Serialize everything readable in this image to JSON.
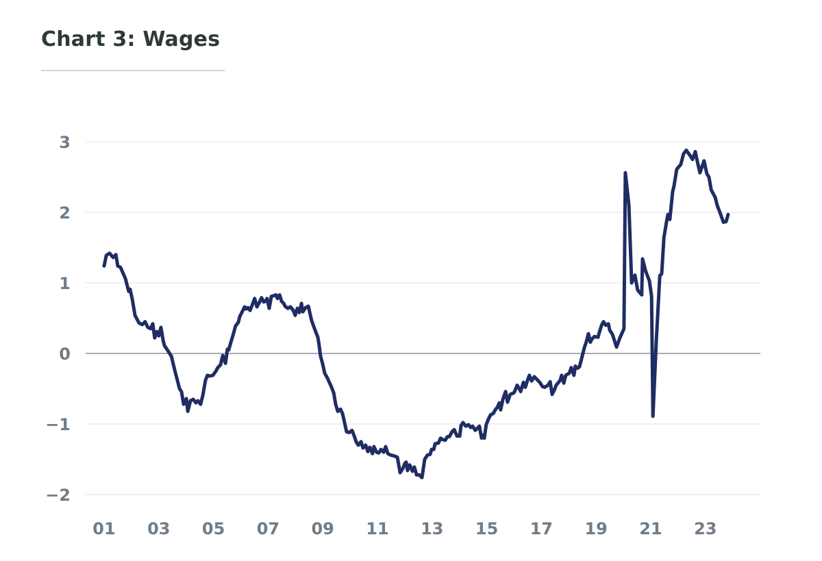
{
  "title": "Chart 3: Wages",
  "chart_data": {
    "type": "line",
    "title": "Chart 3: Wages",
    "xlabel": "",
    "ylabel": "",
    "xlim": [
      2000.5,
      2025.2
    ],
    "ylim": [
      -2,
      3
    ],
    "grid": true,
    "legend": "none",
    "line_color": "#1f2d63",
    "yticks": [
      3,
      2,
      1,
      0,
      -1,
      -2
    ],
    "ytick_labels": [
      "3",
      "2",
      "1",
      "0",
      "−1",
      "−2"
    ],
    "xticks": [
      2001,
      2003,
      2005,
      2007,
      2009,
      2011,
      2013,
      2015,
      2017,
      2019,
      2021,
      2023
    ],
    "xtick_labels": [
      "01",
      "03",
      "05",
      "07",
      "09",
      "11",
      "13",
      "15",
      "17",
      "19",
      "21",
      "23"
    ],
    "series": [
      {
        "x": [
          2001.0,
          2001.08,
          2001.2,
          2001.33,
          2001.43,
          2001.5,
          2001.6,
          2001.78,
          2001.9,
          2001.95,
          2002.03,
          2002.13,
          2002.28,
          2002.4,
          2002.5,
          2002.6,
          2002.7,
          2002.78,
          2002.85,
          2002.93,
          2003.0,
          2003.08,
          2003.16,
          2003.21,
          2003.33,
          2003.46,
          2003.58,
          2003.66,
          2003.76,
          2003.83,
          2003.91,
          2004.01,
          2004.06,
          2004.16,
          2004.26,
          2004.36,
          2004.43,
          2004.53,
          2004.61,
          2004.71,
          2004.78,
          2004.86,
          2004.98,
          2005.09,
          2005.16,
          2005.26,
          2005.34,
          2005.44,
          2005.51,
          2005.56,
          2005.64,
          2005.71,
          2005.81,
          2005.91,
          2005.96,
          2006.09,
          2006.14,
          2006.19,
          2006.26,
          2006.34,
          2006.44,
          2006.51,
          2006.59,
          2006.69,
          2006.76,
          2006.84,
          2006.91,
          2006.96,
          2007.04,
          2007.12,
          2007.22,
          2007.29,
          2007.34,
          2007.42,
          2007.49,
          2007.57,
          2007.62,
          2007.72,
          2007.82,
          2007.92,
          2007.99,
          2008.07,
          2008.14,
          2008.22,
          2008.27,
          2008.37,
          2008.47,
          2008.59,
          2008.72,
          2008.82,
          2008.87,
          2008.92,
          2008.99,
          2009.07,
          2009.17,
          2009.3,
          2009.4,
          2009.47,
          2009.55,
          2009.65,
          2009.72,
          2009.77,
          2009.87,
          2009.97,
          2010.07,
          2010.15,
          2010.22,
          2010.3,
          2010.4,
          2010.47,
          2010.57,
          2010.65,
          2010.72,
          2010.82,
          2010.87,
          2010.97,
          2011.05,
          2011.13,
          2011.23,
          2011.3,
          2011.38,
          2011.48,
          2011.6,
          2011.73,
          2011.83,
          2011.93,
          2012.0,
          2012.05,
          2012.1,
          2012.18,
          2012.28,
          2012.35,
          2012.43,
          2012.53,
          2012.63,
          2012.73,
          2012.83,
          2012.93,
          2012.98,
          2013.06,
          2013.11,
          2013.23,
          2013.31,
          2013.38,
          2013.48,
          2013.56,
          2013.63,
          2013.73,
          2013.81,
          2013.91,
          2014.01,
          2014.06,
          2014.13,
          2014.23,
          2014.33,
          2014.41,
          2014.48,
          2014.58,
          2014.68,
          2014.73,
          2014.81,
          2014.86,
          2014.91,
          2014.98,
          2015.06,
          2015.14,
          2015.24,
          2015.31,
          2015.39,
          2015.46,
          2015.51,
          2015.59,
          2015.69,
          2015.76,
          2015.86,
          2015.99,
          2016.04,
          2016.11,
          2016.19,
          2016.24,
          2016.34,
          2016.41,
          2016.49,
          2016.56,
          2016.64,
          2016.74,
          2016.84,
          2016.94,
          2017.04,
          2017.12,
          2017.24,
          2017.32,
          2017.39,
          2017.47,
          2017.54,
          2017.69,
          2017.74,
          2017.82,
          2017.89,
          2018.02,
          2018.09,
          2018.19,
          2018.24,
          2018.32,
          2018.39,
          2018.49,
          2018.57,
          2018.64,
          2018.72,
          2018.79,
          2018.84,
          2018.94,
          2019.07,
          2019.12,
          2019.2,
          2019.27,
          2019.35,
          2019.45,
          2019.5,
          2019.6,
          2019.75,
          2019.87,
          2020.02,
          2020.07,
          2020.2,
          2020.3,
          2020.42,
          2020.52,
          2020.67,
          2020.7,
          2020.82,
          2020.95,
          2021.03,
          2021.08,
          2021.2,
          2021.33,
          2021.4,
          2021.48,
          2021.58,
          2021.63,
          2021.7,
          2021.8,
          2021.85,
          2021.95,
          2022.1,
          2022.2,
          2022.3,
          2022.43,
          2022.53,
          2022.63,
          2022.7,
          2022.8,
          2022.95,
          2023.05,
          2023.13,
          2023.21,
          2023.36,
          2023.43,
          2023.56,
          2023.66,
          2023.76,
          2023.83
        ],
        "y": [
          1.24,
          1.39,
          1.42,
          1.36,
          1.4,
          1.24,
          1.22,
          1.06,
          0.88,
          0.91,
          0.77,
          0.54,
          0.43,
          0.41,
          0.45,
          0.37,
          0.35,
          0.42,
          0.22,
          0.31,
          0.25,
          0.37,
          0.18,
          0.11,
          0.04,
          -0.04,
          -0.23,
          -0.35,
          -0.5,
          -0.54,
          -0.72,
          -0.64,
          -0.82,
          -0.67,
          -0.65,
          -0.7,
          -0.67,
          -0.72,
          -0.6,
          -0.38,
          -0.31,
          -0.32,
          -0.31,
          -0.25,
          -0.2,
          -0.16,
          -0.03,
          -0.14,
          0.06,
          0.05,
          0.16,
          0.25,
          0.39,
          0.44,
          0.52,
          0.62,
          0.66,
          0.63,
          0.65,
          0.61,
          0.71,
          0.78,
          0.66,
          0.73,
          0.79,
          0.73,
          0.74,
          0.78,
          0.64,
          0.81,
          0.82,
          0.83,
          0.78,
          0.83,
          0.74,
          0.71,
          0.67,
          0.64,
          0.66,
          0.61,
          0.54,
          0.64,
          0.58,
          0.71,
          0.59,
          0.65,
          0.67,
          0.47,
          0.33,
          0.23,
          0.11,
          -0.04,
          -0.14,
          -0.28,
          -0.35,
          -0.46,
          -0.56,
          -0.72,
          -0.82,
          -0.79,
          -0.85,
          -0.93,
          -1.11,
          -1.12,
          -1.09,
          -1.17,
          -1.25,
          -1.3,
          -1.25,
          -1.34,
          -1.3,
          -1.39,
          -1.33,
          -1.42,
          -1.32,
          -1.4,
          -1.41,
          -1.36,
          -1.4,
          -1.32,
          -1.42,
          -1.44,
          -1.45,
          -1.47,
          -1.69,
          -1.63,
          -1.56,
          -1.54,
          -1.66,
          -1.58,
          -1.67,
          -1.61,
          -1.72,
          -1.72,
          -1.76,
          -1.5,
          -1.44,
          -1.43,
          -1.36,
          -1.36,
          -1.28,
          -1.27,
          -1.2,
          -1.22,
          -1.23,
          -1.18,
          -1.18,
          -1.11,
          -1.08,
          -1.17,
          -1.17,
          -1.02,
          -0.98,
          -1.03,
          -1.01,
          -1.05,
          -1.03,
          -1.09,
          -1.05,
          -1.03,
          -1.2,
          -1.16,
          -1.2,
          -1.01,
          -0.93,
          -0.87,
          -0.85,
          -0.8,
          -0.76,
          -0.7,
          -0.8,
          -0.65,
          -0.54,
          -0.69,
          -0.58,
          -0.56,
          -0.52,
          -0.45,
          -0.5,
          -0.54,
          -0.41,
          -0.48,
          -0.38,
          -0.31,
          -0.39,
          -0.33,
          -0.37,
          -0.41,
          -0.47,
          -0.48,
          -0.45,
          -0.4,
          -0.58,
          -0.52,
          -0.45,
          -0.38,
          -0.31,
          -0.42,
          -0.31,
          -0.28,
          -0.2,
          -0.31,
          -0.18,
          -0.21,
          -0.19,
          -0.04,
          0.08,
          0.16,
          0.28,
          0.16,
          0.2,
          0.24,
          0.23,
          0.3,
          0.4,
          0.45,
          0.4,
          0.42,
          0.33,
          0.27,
          0.09,
          0.22,
          0.35,
          2.56,
          2.1,
          1.0,
          1.11,
          0.9,
          0.83,
          1.34,
          1.16,
          1.03,
          0.81,
          -0.89,
          0.16,
          1.1,
          1.13,
          1.64,
          1.87,
          1.97,
          1.9,
          2.29,
          2.37,
          2.61,
          2.68,
          2.83,
          2.88,
          2.81,
          2.75,
          2.86,
          2.73,
          2.56,
          2.73,
          2.55,
          2.5,
          2.32,
          2.21,
          2.1,
          1.97,
          1.86,
          1.87,
          1.97
        ]
      }
    ]
  }
}
